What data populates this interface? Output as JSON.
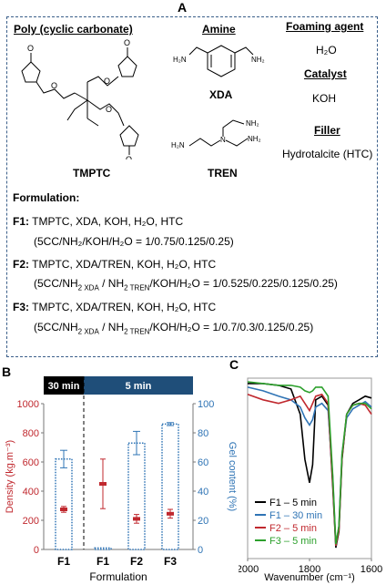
{
  "panelA": {
    "letter": "A",
    "poly_header": "Poly (cyclic carbonate)",
    "amine_header": "Amine",
    "foaming_header": "Foaming agent",
    "foaming_value": "H₂O",
    "catalyst_header": "Catalyst",
    "catalyst_value": "KOH",
    "filler_header": "Filler",
    "filler_value": "Hydrotalcite (HTC)",
    "tmptc_label": "TMPTC",
    "xda_label": "XDA",
    "tren_label": "TREN",
    "nh2_label": "NH₂",
    "h2n_label": "H₂N",
    "o_label": "O",
    "n_label": "N",
    "formulation_title": "Formulation:",
    "f1_tag": "F1:",
    "f1_line1": "TMPTC, XDA, KOH, H₂O, HTC",
    "f1_line2": "(5CC/NH₂/KOH/H₂O = 1/0.75/0.125/0.25)",
    "f2_tag": "F2:",
    "f2_line1": "TMPTC, XDA/TREN, KOH, H₂O, HTC",
    "f2_line2a": "(5CC/NH",
    "f2_line2b": "2 XDA",
    "f2_line2c": " / NH",
    "f2_line2d": "2 TREN",
    "f2_line2e": "/KOH/H₂O = 1/0.525/0.225/0.125/0.25)",
    "f3_tag": "F3:",
    "f3_line1": "TMPTC, XDA/TREN, KOH, H₂O, HTC",
    "f3_line2a": "(5CC/NH",
    "f3_line2b": "2 XDA",
    "f3_line2c": " / NH",
    "f3_line2d": "2 TREN",
    "f3_line2e": "/KOH/H₂O = 1/0.7/0.3/0.125/0.25)"
  },
  "chart_data": [
    {
      "panel": "B",
      "type": "bar",
      "categories": [
        "F1",
        "F1",
        "F2",
        "F3"
      ],
      "xlabel": "Formulation",
      "ylabel_left": "Density (kg.m⁻³)",
      "ylabel_right": "Gel content (%)",
      "ylim_left": [
        0,
        1000
      ],
      "ylim_right": [
        0,
        100
      ],
      "yticks_left": [
        "0",
        "200",
        "400",
        "600",
        "800",
        "1000"
      ],
      "yticks_right": [
        "0",
        "20",
        "40",
        "60",
        "80",
        "100"
      ],
      "group_labels": [
        "30 min",
        "5 min"
      ],
      "series": [
        {
          "name": "Gel content",
          "axis": "right",
          "values": [
            62,
            1,
            73,
            86
          ],
          "errors": [
            6,
            0,
            8,
            1
          ]
        },
        {
          "name": "Density",
          "axis": "left",
          "values": [
            275,
            450,
            210,
            245
          ],
          "errors": [
            20,
            170,
            30,
            30
          ]
        }
      ],
      "colors": {
        "left_axis": "#c0282e",
        "right_axis": "#2f74b5",
        "group_30": "#000000",
        "group_5": "#1f4e79"
      }
    },
    {
      "panel": "C",
      "type": "line",
      "xlabel": "Wavenumber (cm⁻¹)",
      "xlim": [
        2000,
        1600
      ],
      "xticks": [
        "2000",
        "1800",
        "1600"
      ],
      "series": [
        {
          "name": "F1 – 5 min",
          "color": "#000000",
          "x": [
            2000,
            1950,
            1900,
            1860,
            1830,
            1815,
            1800,
            1790,
            1780,
            1760,
            1740,
            1725,
            1715,
            1705,
            1695,
            1680,
            1660,
            1640,
            1620,
            1600
          ],
          "y": [
            0.97,
            0.97,
            0.96,
            0.94,
            0.8,
            0.55,
            0.42,
            0.52,
            0.88,
            0.9,
            0.85,
            0.4,
            0.06,
            0.15,
            0.55,
            0.8,
            0.86,
            0.88,
            0.9,
            0.89
          ]
        },
        {
          "name": "F1 – 30 min",
          "color": "#2f74b5",
          "x": [
            2000,
            1950,
            1900,
            1860,
            1830,
            1815,
            1800,
            1790,
            1780,
            1760,
            1740,
            1725,
            1715,
            1705,
            1695,
            1680,
            1660,
            1640,
            1620,
            1600
          ],
          "y": [
            0.95,
            0.93,
            0.9,
            0.88,
            0.84,
            0.78,
            0.74,
            0.77,
            0.84,
            0.86,
            0.82,
            0.45,
            0.07,
            0.18,
            0.58,
            0.78,
            0.83,
            0.85,
            0.87,
            0.84
          ]
        },
        {
          "name": "F2 – 5 min",
          "color": "#c0282e",
          "x": [
            2000,
            1950,
            1900,
            1860,
            1830,
            1815,
            1800,
            1790,
            1780,
            1760,
            1740,
            1725,
            1715,
            1705,
            1695,
            1680,
            1660,
            1640,
            1620,
            1600
          ],
          "y": [
            0.91,
            0.88,
            0.86,
            0.88,
            0.9,
            0.86,
            0.82,
            0.86,
            0.9,
            0.91,
            0.86,
            0.42,
            0.07,
            0.16,
            0.56,
            0.8,
            0.85,
            0.86,
            0.85,
            0.8
          ]
        },
        {
          "name": "F3 – 5 min",
          "color": "#2ca02c",
          "x": [
            2000,
            1950,
            1900,
            1860,
            1830,
            1815,
            1800,
            1790,
            1780,
            1760,
            1740,
            1725,
            1715,
            1705,
            1695,
            1680,
            1660,
            1640,
            1620,
            1600
          ],
          "y": [
            0.98,
            0.97,
            0.96,
            0.96,
            0.95,
            0.93,
            0.92,
            0.93,
            0.95,
            0.95,
            0.9,
            0.46,
            0.08,
            0.18,
            0.58,
            0.8,
            0.85,
            0.86,
            0.86,
            0.83
          ]
        }
      ]
    }
  ]
}
